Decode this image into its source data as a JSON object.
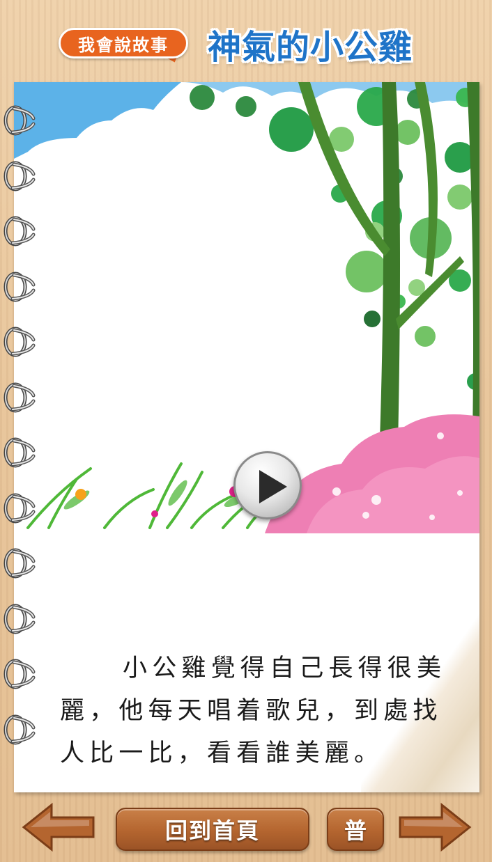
{
  "header": {
    "badge_label": "我會說故事",
    "story_title": "神氣的小公雞"
  },
  "page": {
    "story_text": "小公雞覺得自己長得很美麗，他每天唱着歌兒，到處找人比一比，看看誰美麗。"
  },
  "footer": {
    "home_label": "回到首頁",
    "language_label": "普"
  },
  "icons": {
    "prev": "arrow-left-icon",
    "next": "arrow-right-icon",
    "play": "play-icon"
  },
  "colors": {
    "title_blue": "#1f74c8",
    "badge_orange": "#e8641f",
    "button_wood": "#b4652f",
    "background_wood": "#e9c79d"
  }
}
